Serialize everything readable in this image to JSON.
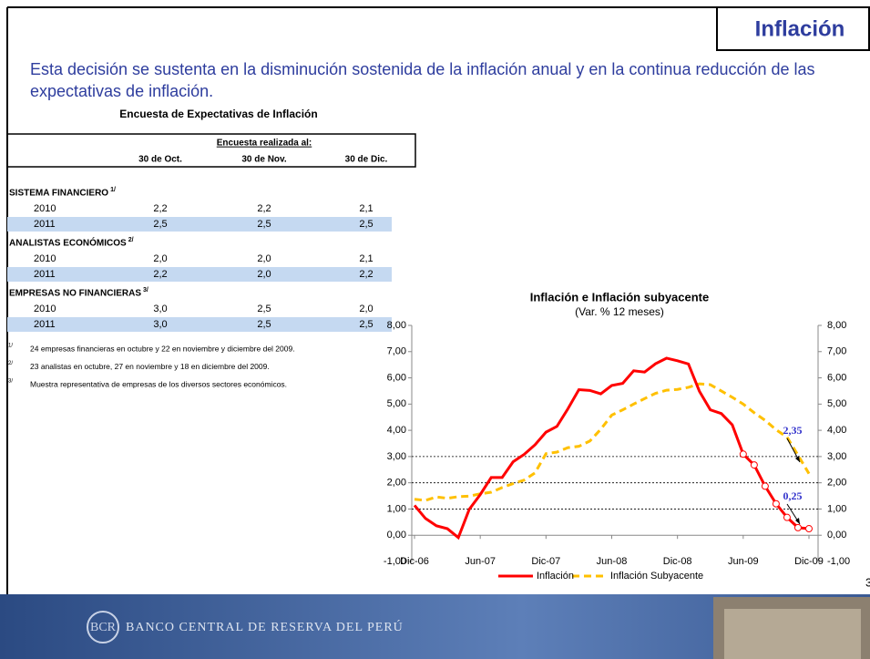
{
  "header": {
    "title": "Inflación",
    "text": "Esta decisión se sustenta en la disminución sostenida de la inflación anual y en la continua reducción de las expectativas de inflación."
  },
  "table": {
    "title": "Encuesta de Expectativas de Inflación",
    "caption": "Encuesta realizada al:",
    "columns": [
      "30 de Oct.",
      "30 de Nov.",
      "30 de Dic."
    ],
    "groups": [
      {
        "name": "SISTEMA FINANCIERO",
        "note": "1/",
        "rows": [
          [
            "2010",
            "2,2",
            "2,2",
            "2,1"
          ],
          [
            "2011",
            "2,5",
            "2,5",
            "2,5"
          ]
        ]
      },
      {
        "name": "ANALISTAS ECONÓMICOS",
        "note": "2/",
        "rows": [
          [
            "2010",
            "2,0",
            "2,0",
            "2,1"
          ],
          [
            "2011",
            "2,2",
            "2,0",
            "2,2"
          ]
        ]
      },
      {
        "name": "EMPRESAS NO FINANCIERAS",
        "note": "3/",
        "rows": [
          [
            "2010",
            "3,0",
            "2,5",
            "2,0"
          ],
          [
            "2011",
            "3,0",
            "2,5",
            "2,5"
          ]
        ]
      }
    ],
    "footnotes": [
      {
        "mark": "1/",
        "text": "24 empresas financieras en octubre y 22 en noviembre y diciembre del 2009."
      },
      {
        "mark": "2/",
        "text": "23 analistas en octubre, 27 en noviembre y 18 en diciembre del 2009."
      },
      {
        "mark": "3/",
        "text": "Muestra representativa de empresas de los diversos sectores económicos."
      }
    ]
  },
  "chart_data": {
    "type": "line",
    "title": "Inflación e Inflación subyacente",
    "subtitle": "(Var. % 12 meses)",
    "categories": [
      "Dic-06",
      null,
      null,
      null,
      null,
      null,
      "Jun-07",
      null,
      null,
      null,
      null,
      null,
      "Dic-07",
      null,
      null,
      null,
      null,
      null,
      "Jun-08",
      null,
      null,
      null,
      null,
      null,
      "Dic-08",
      null,
      null,
      null,
      null,
      null,
      "Jun-09",
      null,
      null,
      null,
      null,
      null,
      "Dic-09"
    ],
    "series": [
      {
        "name": "Inflación",
        "color": "#ff0000",
        "values": [
          1.14,
          0.64,
          0.36,
          0.25,
          -0.09,
          0.99,
          1.55,
          2.2,
          2.2,
          2.8,
          3.08,
          3.45,
          3.93,
          4.15,
          4.82,
          5.55,
          5.52,
          5.39,
          5.71,
          5.79,
          6.27,
          6.22,
          6.54,
          6.75,
          6.65,
          6.53,
          5.49,
          4.78,
          4.64,
          4.21,
          3.09,
          2.68,
          1.87,
          1.2,
          0.68,
          0.29,
          0.25
        ]
      },
      {
        "name": "Inflación Subyacente",
        "color": "#ffc000",
        "values": [
          1.37,
          1.33,
          1.46,
          1.41,
          1.47,
          1.49,
          1.58,
          1.64,
          1.82,
          1.97,
          2.1,
          2.38,
          3.11,
          3.17,
          3.34,
          3.39,
          3.59,
          4.04,
          4.58,
          4.78,
          5.0,
          5.21,
          5.41,
          5.53,
          5.56,
          5.64,
          5.77,
          5.74,
          5.5,
          5.26,
          5.0,
          4.67,
          4.38,
          4.02,
          3.74,
          3.05,
          2.35
        ]
      }
    ],
    "annotations": [
      "2,35",
      "0,25"
    ],
    "hlines": [
      1,
      2,
      3
    ],
    "ylim": [
      -1,
      8
    ],
    "yticks": [
      {
        "value": -1,
        "label": "-1,00"
      },
      {
        "value": 0,
        "label": "0,00"
      },
      {
        "value": 1,
        "label": "1,00"
      },
      {
        "value": 2,
        "label": "2,00"
      },
      {
        "value": 3,
        "label": "3,00"
      },
      {
        "value": 4,
        "label": "4,00"
      },
      {
        "value": 5,
        "label": "5,00"
      },
      {
        "value": 6,
        "label": "6,00"
      },
      {
        "value": 7,
        "label": "7,00"
      },
      {
        "value": 8,
        "label": "8,00"
      }
    ],
    "y2lim": [
      -1,
      8
    ],
    "y2ticks": [
      {
        "value": -1,
        "label": "-1,00"
      },
      {
        "value": 0,
        "label": "0,00"
      },
      {
        "value": 1,
        "label": "1,00"
      },
      {
        "value": 2,
        "label": "2,00"
      },
      {
        "value": 3,
        "label": "3,00"
      },
      {
        "value": 4,
        "label": "4,00"
      },
      {
        "value": 5,
        "label": "5,00"
      },
      {
        "value": 6,
        "label": "6,00"
      },
      {
        "value": 7,
        "label": "7,00"
      },
      {
        "value": 8,
        "label": "8,00"
      }
    ],
    "legend": "bottom"
  },
  "footer": {
    "bank": "BANCO CENTRAL DE RESERVA DEL PERÚ",
    "page": "3"
  }
}
